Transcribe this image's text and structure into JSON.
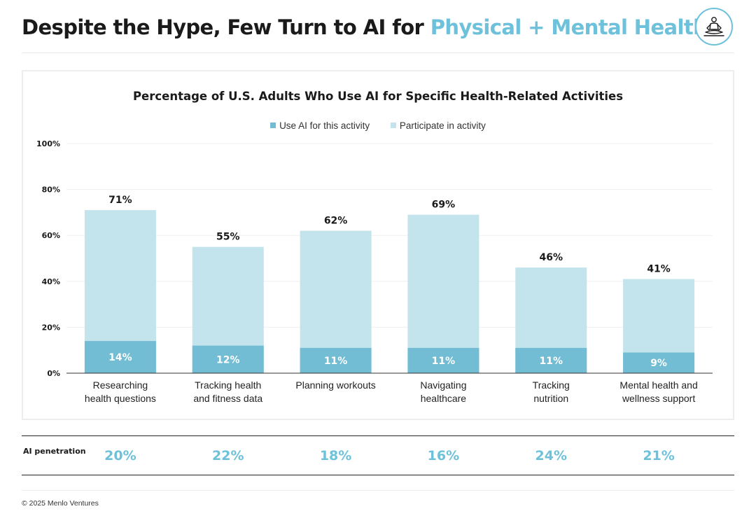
{
  "header": {
    "title_main": "Despite the Hype, Few Turn to AI for ",
    "title_accent": "Physical + Mental Health",
    "logo_icon": "meditation-figure-icon"
  },
  "colors": {
    "accent": "#6ec1da",
    "use_ai_bar": "#72bcd4",
    "participate_bar": "#c3e4ec"
  },
  "chart_data": {
    "type": "bar",
    "stacked": true,
    "title": "Percentage of U.S. Adults Who Use AI for Specific Health-Related Activities",
    "legend": [
      "Use AI for this activity",
      "Participate in activity"
    ],
    "legend_position": "top-center",
    "categories": [
      [
        "Researching",
        "health questions"
      ],
      [
        "Tracking health",
        "and fitness data"
      ],
      [
        "Planning workouts"
      ],
      [
        "Navigating",
        "healthcare"
      ],
      [
        "Tracking",
        "nutrition"
      ],
      [
        "Mental health and",
        "wellness support"
      ]
    ],
    "series": [
      {
        "name": "Use AI for this activity",
        "values": [
          14,
          12,
          11,
          11,
          11,
          9
        ]
      },
      {
        "name": "Participate in activity",
        "values": [
          71,
          55,
          62,
          69,
          46,
          41
        ]
      }
    ],
    "data_labels": {
      "ai": [
        "14%",
        "12%",
        "11%",
        "11%",
        "11%",
        "9%"
      ],
      "participate": [
        "71%",
        "55%",
        "62%",
        "69%",
        "46%",
        "41%"
      ]
    },
    "y_ticks": [
      "0%",
      "20%",
      "40%",
      "60%",
      "80%",
      "100%"
    ],
    "ylim": [
      0,
      100
    ],
    "grid": true
  },
  "penetration": {
    "label": "AI penetration",
    "values": [
      "20%",
      "22%",
      "18%",
      "16%",
      "24%",
      "21%"
    ]
  },
  "footer": {
    "copyright": "© 2025 Menlo Ventures"
  }
}
